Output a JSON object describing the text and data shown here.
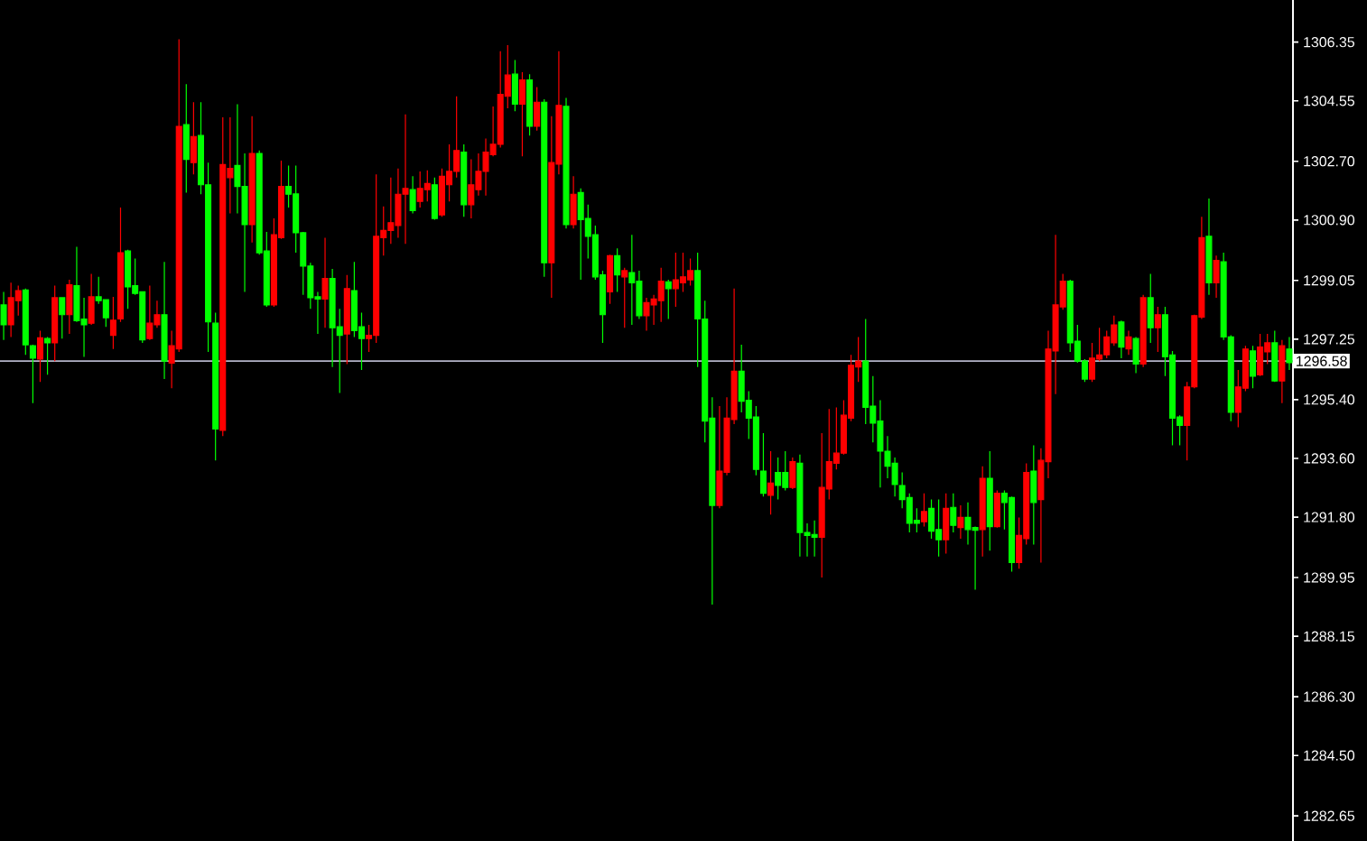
{
  "chart_data": {
    "type": "candlestick",
    "categories": [
      null,
      null,
      null,
      null,
      null,
      null,
      null,
      null,
      null,
      null,
      null,
      null,
      null,
      null,
      null,
      null,
      null,
      null,
      null,
      null,
      null,
      null,
      null,
      null,
      null,
      null,
      null,
      null,
      null,
      null,
      null,
      null,
      null,
      null,
      null,
      null,
      null,
      null,
      null,
      null,
      null,
      null,
      null,
      null,
      null,
      null,
      null,
      null,
      null,
      null,
      null,
      null,
      null,
      null,
      null,
      null,
      null,
      null,
      null,
      null,
      null,
      null,
      null,
      null,
      null,
      null,
      null,
      null,
      null,
      null,
      null,
      null,
      null,
      null,
      null,
      null,
      null,
      null,
      null,
      null,
      null,
      null,
      null,
      null,
      null,
      null,
      null,
      null,
      null,
      null,
      null,
      null,
      null,
      null,
      null,
      null,
      null,
      null,
      null,
      null,
      null,
      null,
      null,
      null,
      null,
      null,
      null,
      null,
      null,
      null,
      null,
      null,
      null,
      null,
      null,
      null,
      null,
      null,
      null,
      null,
      null,
      null,
      null,
      null,
      null,
      null,
      null,
      null,
      null,
      null,
      null,
      null,
      null,
      null,
      null,
      null,
      null,
      null,
      null,
      null,
      null,
      null,
      null,
      null,
      null,
      null,
      null,
      null,
      null,
      null,
      null,
      null,
      null,
      null,
      null,
      null,
      null,
      null,
      null,
      null,
      null,
      null,
      null,
      null,
      null,
      null,
      null,
      null,
      null,
      null,
      null,
      null,
      null,
      null,
      null,
      null,
      null
    ],
    "ohlc": [
      [
        1298.3,
        1298.7,
        1297.23,
        1297.69
      ],
      [
        1297.69,
        1298.98,
        1297.32,
        1298.52
      ],
      [
        1298.43,
        1298.89,
        1297.97,
        1298.74
      ],
      [
        1298.76,
        1298.8,
        1296.77,
        1297.08
      ],
      [
        1297.05,
        1297.08,
        1295.29,
        1296.67
      ],
      [
        1296.64,
        1297.51,
        1295.94,
        1297.29
      ],
      [
        1297.27,
        1297.32,
        1296.16,
        1297.14
      ],
      [
        1297.14,
        1298.89,
        1296.58,
        1298.52
      ],
      [
        1298.52,
        1298.52,
        1297.27,
        1298.0
      ],
      [
        1298.0,
        1299.07,
        1297.41,
        1298.92
      ],
      [
        1298.89,
        1300.08,
        1297.78,
        1297.82
      ],
      [
        1297.87,
        1298.52,
        1296.71,
        1297.69
      ],
      [
        1297.74,
        1299.25,
        1297.69,
        1298.55
      ],
      [
        1298.55,
        1299.16,
        1298.33,
        1298.43
      ],
      [
        1298.46,
        1298.48,
        1297.63,
        1297.91
      ],
      [
        1297.37,
        1298.55,
        1296.95,
        1297.83
      ],
      [
        1297.87,
        1301.28,
        1297.78,
        1299.9
      ],
      [
        1299.95,
        1299.99,
        1298.18,
        1298.85
      ],
      [
        1298.89,
        1299.72,
        1298.61,
        1298.65
      ],
      [
        1298.7,
        1298.7,
        1297.14,
        1297.23
      ],
      [
        1297.27,
        1298.89,
        1297.23,
        1297.74
      ],
      [
        1297.69,
        1298.43,
        1297.6,
        1298.0
      ],
      [
        1298.0,
        1299.62,
        1296.03,
        1296.58
      ],
      [
        1296.52,
        1297.51,
        1295.75,
        1297.05
      ],
      [
        1296.95,
        1306.44,
        1296.86,
        1303.77
      ],
      [
        1303.82,
        1305.06,
        1301.74,
        1302.76
      ],
      [
        1302.66,
        1304.51,
        1302.3,
        1303.46
      ],
      [
        1303.49,
        1304.51,
        1301.69,
        1301.98
      ],
      [
        1301.98,
        1302.66,
        1296.86,
        1297.78
      ],
      [
        1297.74,
        1298.06,
        1293.54,
        1294.5
      ],
      [
        1294.46,
        1304.05,
        1294.28,
        1302.6
      ],
      [
        1302.2,
        1304.05,
        1301.1,
        1302.48
      ],
      [
        1302.57,
        1304.45,
        1301.1,
        1301.93
      ],
      [
        1301.93,
        1302.94,
        1298.7,
        1300.76
      ],
      [
        1300.76,
        1304.08,
        1300.21,
        1302.94
      ],
      [
        1302.94,
        1303.03,
        1299.84,
        1299.9
      ],
      [
        1299.95,
        1300.54,
        1298.24,
        1298.3
      ],
      [
        1298.3,
        1300.95,
        1298.24,
        1300.45
      ],
      [
        1300.36,
        1302.72,
        1300.32,
        1301.93
      ],
      [
        1301.93,
        1302.57,
        1301.28,
        1301.69
      ],
      [
        1301.7,
        1302.57,
        1299.9,
        1300.51
      ],
      [
        1300.51,
        1300.54,
        1298.61,
        1299.49
      ],
      [
        1299.49,
        1299.59,
        1298.18,
        1298.52
      ],
      [
        1298.55,
        1298.7,
        1297.41,
        1298.48
      ],
      [
        1298.48,
        1300.36,
        1297.6,
        1299.11
      ],
      [
        1299.11,
        1299.4,
        1296.4,
        1297.6
      ],
      [
        1297.63,
        1298.18,
        1295.6,
        1297.37
      ],
      [
        1297.41,
        1299.22,
        1296.49,
        1298.8
      ],
      [
        1298.74,
        1299.62,
        1297.32,
        1297.51
      ],
      [
        1297.63,
        1298.06,
        1296.31,
        1297.27
      ],
      [
        1297.27,
        1297.69,
        1296.86,
        1297.37
      ],
      [
        1297.37,
        1302.3,
        1297.14,
        1300.4
      ],
      [
        1300.36,
        1301.32,
        1299.81,
        1300.58
      ],
      [
        1300.58,
        1302.2,
        1300.17,
        1300.82
      ],
      [
        1300.73,
        1302.48,
        1300.36,
        1301.69
      ],
      [
        1301.69,
        1304.14,
        1300.17,
        1301.87
      ],
      [
        1301.83,
        1302.24,
        1301.1,
        1301.19
      ],
      [
        1301.47,
        1302.39,
        1301.28,
        1301.87
      ],
      [
        1301.83,
        1302.42,
        1301.47,
        1302.02
      ],
      [
        1301.98,
        1302.2,
        1300.91,
        1300.95
      ],
      [
        1301.06,
        1302.48,
        1301.0,
        1302.24
      ],
      [
        1301.98,
        1303.22,
        1301.47,
        1302.39
      ],
      [
        1302.39,
        1304.69,
        1302.2,
        1303.03
      ],
      [
        1302.98,
        1303.22,
        1301.0,
        1301.37
      ],
      [
        1301.37,
        1302.76,
        1300.95,
        1301.98
      ],
      [
        1301.83,
        1302.94,
        1301.65,
        1302.39
      ],
      [
        1302.39,
        1303.4,
        1301.65,
        1302.98
      ],
      [
        1302.9,
        1304.38,
        1302.85,
        1303.22
      ],
      [
        1303.22,
        1306.07,
        1303.12,
        1304.75
      ],
      [
        1304.69,
        1306.26,
        1304.32,
        1305.34
      ],
      [
        1305.37,
        1305.8,
        1304.23,
        1304.45
      ],
      [
        1304.45,
        1305.43,
        1302.85,
        1305.19
      ],
      [
        1305.19,
        1305.37,
        1303.49,
        1303.77
      ],
      [
        1303.77,
        1304.97,
        1303.64,
        1304.51
      ],
      [
        1304.51,
        1304.6,
        1299.16,
        1299.59
      ],
      [
        1299.59,
        1304.08,
        1298.52,
        1302.66
      ],
      [
        1302.61,
        1306.07,
        1302.3,
        1304.41
      ],
      [
        1304.38,
        1304.64,
        1300.64,
        1300.76
      ],
      [
        1300.76,
        1302.24,
        1300.64,
        1301.69
      ],
      [
        1301.74,
        1301.87,
        1299.07,
        1300.91
      ],
      [
        1300.95,
        1301.37,
        1299.72,
        1300.4
      ],
      [
        1300.45,
        1300.73,
        1299.07,
        1299.16
      ],
      [
        1299.22,
        1299.35,
        1297.14,
        1298.0
      ],
      [
        1298.7,
        1299.84,
        1298.33,
        1299.81
      ],
      [
        1299.81,
        1300.03,
        1298.7,
        1299.22
      ],
      [
        1299.16,
        1299.44,
        1297.6,
        1299.35
      ],
      [
        1299.29,
        1300.45,
        1297.69,
        1298.98
      ],
      [
        1299.03,
        1299.35,
        1297.87,
        1297.97
      ],
      [
        1297.97,
        1298.52,
        1297.51,
        1298.37
      ],
      [
        1298.3,
        1298.61,
        1297.69,
        1298.48
      ],
      [
        1298.43,
        1299.44,
        1297.78,
        1299.03
      ],
      [
        1299.01,
        1299.07,
        1297.87,
        1298.8
      ],
      [
        1298.8,
        1299.9,
        1298.24,
        1299.07
      ],
      [
        1298.98,
        1299.9,
        1298.7,
        1299.16
      ],
      [
        1299.07,
        1299.72,
        1298.89,
        1299.35
      ],
      [
        1299.35,
        1299.9,
        1296.4,
        1297.87
      ],
      [
        1297.87,
        1298.43,
        1294.09,
        1294.74
      ],
      [
        1294.83,
        1295.47,
        1289.12,
        1292.16
      ],
      [
        1292.16,
        1295.2,
        1292.07,
        1293.21
      ],
      [
        1293.17,
        1295.47,
        1293.08,
        1294.83
      ],
      [
        1294.79,
        1298.8,
        1294.65,
        1296.27
      ],
      [
        1296.27,
        1297.08,
        1295.01,
        1295.35
      ],
      [
        1295.38,
        1295.66,
        1294.19,
        1294.83
      ],
      [
        1294.87,
        1295.2,
        1293.08,
        1293.26
      ],
      [
        1293.21,
        1294.37,
        1292.43,
        1292.53
      ],
      [
        1292.47,
        1293.82,
        1291.88,
        1292.84
      ],
      [
        1293.17,
        1293.63,
        1292.34,
        1292.77
      ],
      [
        1293.17,
        1293.82,
        1292.62,
        1292.71
      ],
      [
        1292.71,
        1293.63,
        1292.66,
        1293.5
      ],
      [
        1293.45,
        1293.72,
        1290.59,
        1291.33
      ],
      [
        1291.33,
        1291.61,
        1290.59,
        1291.24
      ],
      [
        1291.27,
        1291.7,
        1290.59,
        1291.18
      ],
      [
        1291.18,
        1294.37,
        1289.95,
        1292.71
      ],
      [
        1292.66,
        1295.11,
        1292.34,
        1293.5
      ],
      [
        1293.45,
        1295.16,
        1293.26,
        1293.76
      ],
      [
        1293.76,
        1295.38,
        1293.72,
        1294.92
      ],
      [
        1294.83,
        1296.77,
        1294.74,
        1296.45
      ],
      [
        1296.4,
        1297.32,
        1295.94,
        1296.58
      ],
      [
        1296.58,
        1297.87,
        1294.65,
        1295.16
      ],
      [
        1295.2,
        1296.12,
        1294.09,
        1294.68
      ],
      [
        1294.74,
        1295.38,
        1292.71,
        1293.82
      ],
      [
        1293.82,
        1294.28,
        1292.99,
        1293.36
      ],
      [
        1293.45,
        1293.63,
        1292.43,
        1292.8
      ],
      [
        1292.77,
        1293.17,
        1292.07,
        1292.34
      ],
      [
        1292.4,
        1292.53,
        1291.33,
        1291.61
      ],
      [
        1291.7,
        1292.07,
        1291.33,
        1291.61
      ],
      [
        1291.66,
        1292.53,
        1291.51,
        1291.97
      ],
      [
        1292.07,
        1292.34,
        1291.14,
        1291.37
      ],
      [
        1291.42,
        1292.34,
        1290.59,
        1291.11
      ],
      [
        1291.11,
        1292.53,
        1290.68,
        1292.07
      ],
      [
        1292.1,
        1292.53,
        1291.33,
        1291.55
      ],
      [
        1291.48,
        1292.16,
        1291.14,
        1291.79
      ],
      [
        1291.79,
        1292.25,
        1290.96,
        1291.42
      ],
      [
        1291.48,
        1291.51,
        1289.58,
        1291.4
      ],
      [
        1291.42,
        1293.36,
        1290.59,
        1292.99
      ],
      [
        1292.99,
        1293.82,
        1290.77,
        1291.51
      ],
      [
        1291.51,
        1292.62,
        1291.48,
        1292.53
      ],
      [
        1292.53,
        1292.62,
        1291.42,
        1292.25
      ],
      [
        1292.4,
        1292.43,
        1290.13,
        1290.41
      ],
      [
        1290.41,
        1291.79,
        1290.22,
        1291.24
      ],
      [
        1291.14,
        1293.45,
        1290.96,
        1293.17
      ],
      [
        1293.21,
        1294.0,
        1290.96,
        1292.25
      ],
      [
        1292.34,
        1293.91,
        1290.41,
        1293.54
      ],
      [
        1293.5,
        1297.51,
        1292.99,
        1296.95
      ],
      [
        1296.89,
        1300.45,
        1295.57,
        1298.3
      ],
      [
        1298.24,
        1299.25,
        1298.15,
        1299.03
      ],
      [
        1299.03,
        1299.07,
        1296.86,
        1297.14
      ],
      [
        1297.19,
        1297.69,
        1296.53,
        1296.58
      ],
      [
        1296.58,
        1296.64,
        1295.94,
        1296.03
      ],
      [
        1296.03,
        1297.14,
        1295.94,
        1296.67
      ],
      [
        1296.64,
        1297.6,
        1296.58,
        1296.77
      ],
      [
        1296.77,
        1297.51,
        1296.67,
        1297.32
      ],
      [
        1297.14,
        1297.97,
        1297.05,
        1297.69
      ],
      [
        1297.78,
        1297.82,
        1296.67,
        1297.01
      ],
      [
        1296.95,
        1297.51,
        1296.77,
        1297.32
      ],
      [
        1297.27,
        1297.32,
        1296.21,
        1296.49
      ],
      [
        1296.49,
        1298.61,
        1296.4,
        1298.52
      ],
      [
        1298.52,
        1299.25,
        1297.14,
        1297.6
      ],
      [
        1297.6,
        1298.24,
        1296.86,
        1298.0
      ],
      [
        1298.0,
        1298.24,
        1296.12,
        1296.71
      ],
      [
        1296.77,
        1296.89,
        1294.0,
        1294.83
      ],
      [
        1294.87,
        1294.92,
        1294.0,
        1294.61
      ],
      [
        1294.61,
        1295.94,
        1293.54,
        1295.79
      ],
      [
        1295.79,
        1298.0,
        1295.75,
        1297.97
      ],
      [
        1297.93,
        1301.0,
        1297.87,
        1300.36
      ],
      [
        1300.4,
        1301.56,
        1298.61,
        1298.98
      ],
      [
        1298.98,
        1299.81,
        1298.52,
        1299.66
      ],
      [
        1299.62,
        1299.9,
        1297.23,
        1297.32
      ],
      [
        1297.32,
        1297.37,
        1294.74,
        1295.01
      ],
      [
        1295.01,
        1296.31,
        1294.55,
        1295.79
      ],
      [
        1295.75,
        1297.05,
        1295.66,
        1296.95
      ],
      [
        1296.89,
        1297.05,
        1295.75,
        1296.12
      ],
      [
        1296.16,
        1297.41,
        1296.12,
        1297.01
      ],
      [
        1296.86,
        1297.41,
        1296.49,
        1297.14
      ],
      [
        1297.14,
        1297.51,
        1295.94,
        1295.97
      ],
      [
        1295.97,
        1297.23,
        1295.29,
        1297.05
      ],
      [
        1296.95,
        1297.32,
        1296.31,
        1296.53
      ]
    ],
    "colors": [
      "#00ff00",
      "#ff0000",
      "#ff0000",
      "#00ff00",
      "#00ff00",
      "#ff0000",
      "#00ff00",
      "#ff0000",
      "#00ff00",
      "#ff0000",
      "#00ff00",
      "#00ff00",
      "#ff0000",
      "#00ff00",
      "#00ff00",
      "#ff0000",
      "#ff0000",
      "#00ff00",
      "#00ff00",
      "#00ff00",
      "#ff0000",
      "#ff0000",
      "#00ff00",
      "#ff0000",
      "#ff0000",
      "#00ff00",
      "#ff0000",
      "#00ff00",
      "#00ff00",
      "#00ff00",
      "#ff0000",
      "#ff0000",
      "#00ff00",
      "#00ff00",
      "#ff0000",
      "#00ff00",
      "#00ff00",
      "#ff0000",
      "#ff0000",
      "#00ff00",
      "#00ff00",
      "#00ff00",
      "#00ff00",
      "#00ff00",
      "#ff0000",
      "#00ff00",
      "#00ff00",
      "#ff0000",
      "#00ff00",
      "#00ff00",
      "#ff0000",
      "#ff0000",
      "#ff0000",
      "#ff0000",
      "#ff0000",
      "#ff0000",
      "#00ff00",
      "#ff0000",
      "#ff0000",
      "#00ff00",
      "#ff0000",
      "#ff0000",
      "#ff0000",
      "#00ff00",
      "#ff0000",
      "#ff0000",
      "#ff0000",
      "#ff0000",
      "#ff0000",
      "#ff0000",
      "#00ff00",
      "#ff0000",
      "#00ff00",
      "#ff0000",
      "#00ff00",
      "#ff0000",
      "#ff0000",
      "#00ff00",
      "#ff0000",
      "#00ff00",
      "#00ff00",
      "#00ff00",
      "#00ff00",
      "#ff0000",
      "#00ff00",
      "#ff0000",
      "#00ff00",
      "#00ff00",
      "#ff0000",
      "#ff0000",
      "#ff0000",
      "#00ff00",
      "#ff0000",
      "#ff0000",
      "#ff0000",
      "#00ff00",
      "#00ff00",
      "#00ff00",
      "#ff0000",
      "#ff0000",
      "#ff0000",
      "#00ff00",
      "#00ff00",
      "#00ff00",
      "#00ff00",
      "#ff0000",
      "#00ff00",
      "#00ff00",
      "#ff0000",
      "#00ff00",
      "#00ff00",
      "#00ff00",
      "#ff0000",
      "#ff0000",
      "#ff0000",
      "#ff0000",
      "#ff0000",
      "#ff0000",
      "#00ff00",
      "#00ff00",
      "#00ff00",
      "#00ff00",
      "#00ff00",
      "#00ff00",
      "#00ff00",
      "#00ff00",
      "#ff0000",
      "#00ff00",
      "#00ff00",
      "#ff0000",
      "#00ff00",
      "#ff0000",
      "#00ff00",
      "#00ff00",
      "#ff0000",
      "#00ff00",
      "#ff0000",
      "#00ff00",
      "#00ff00",
      "#ff0000",
      "#ff0000",
      "#00ff00",
      "#ff0000",
      "#ff0000",
      "#ff0000",
      "#ff0000",
      "#00ff00",
      "#00ff00",
      "#00ff00",
      "#ff0000",
      "#ff0000",
      "#ff0000",
      "#ff0000",
      "#00ff00",
      "#ff0000",
      "#00ff00",
      "#ff0000",
      "#00ff00",
      "#ff0000",
      "#00ff00",
      "#00ff00",
      "#00ff00",
      "#ff0000",
      "#ff0000",
      "#ff0000",
      "#00ff00",
      "#ff0000",
      "#00ff00",
      "#00ff00",
      "#ff0000",
      "#ff0000",
      "#00ff00",
      "#ff0000",
      "#ff0000",
      "#00ff00",
      "#ff0000",
      "#00ff00"
    ],
    "ylim": [
      1281.88,
      1307.64
    ],
    "yticks": [
      {
        "value": 1306.35,
        "label": "1306.35"
      },
      {
        "value": 1304.55,
        "label": "1304.55"
      },
      {
        "value": 1302.7,
        "label": "1302.70"
      },
      {
        "value": 1300.9,
        "label": "1300.90"
      },
      {
        "value": 1299.05,
        "label": "1299.05"
      },
      {
        "value": 1297.25,
        "label": "1297.25"
      },
      {
        "value": 1295.4,
        "label": "1295.40"
      },
      {
        "value": 1293.6,
        "label": "1293.60"
      },
      {
        "value": 1291.8,
        "label": "1291.80"
      },
      {
        "value": 1289.95,
        "label": "1289.95"
      },
      {
        "value": 1288.15,
        "label": "1288.15"
      },
      {
        "value": 1286.3,
        "label": "1286.30"
      },
      {
        "value": 1284.5,
        "label": "1284.50"
      },
      {
        "value": 1282.65,
        "label": "1282.65"
      }
    ],
    "ref_lines": [
      {
        "axis": "y",
        "value": 1296.58,
        "label": "1296.58",
        "color": "#b4b4c8"
      }
    ],
    "tick_labels": "y"
  }
}
